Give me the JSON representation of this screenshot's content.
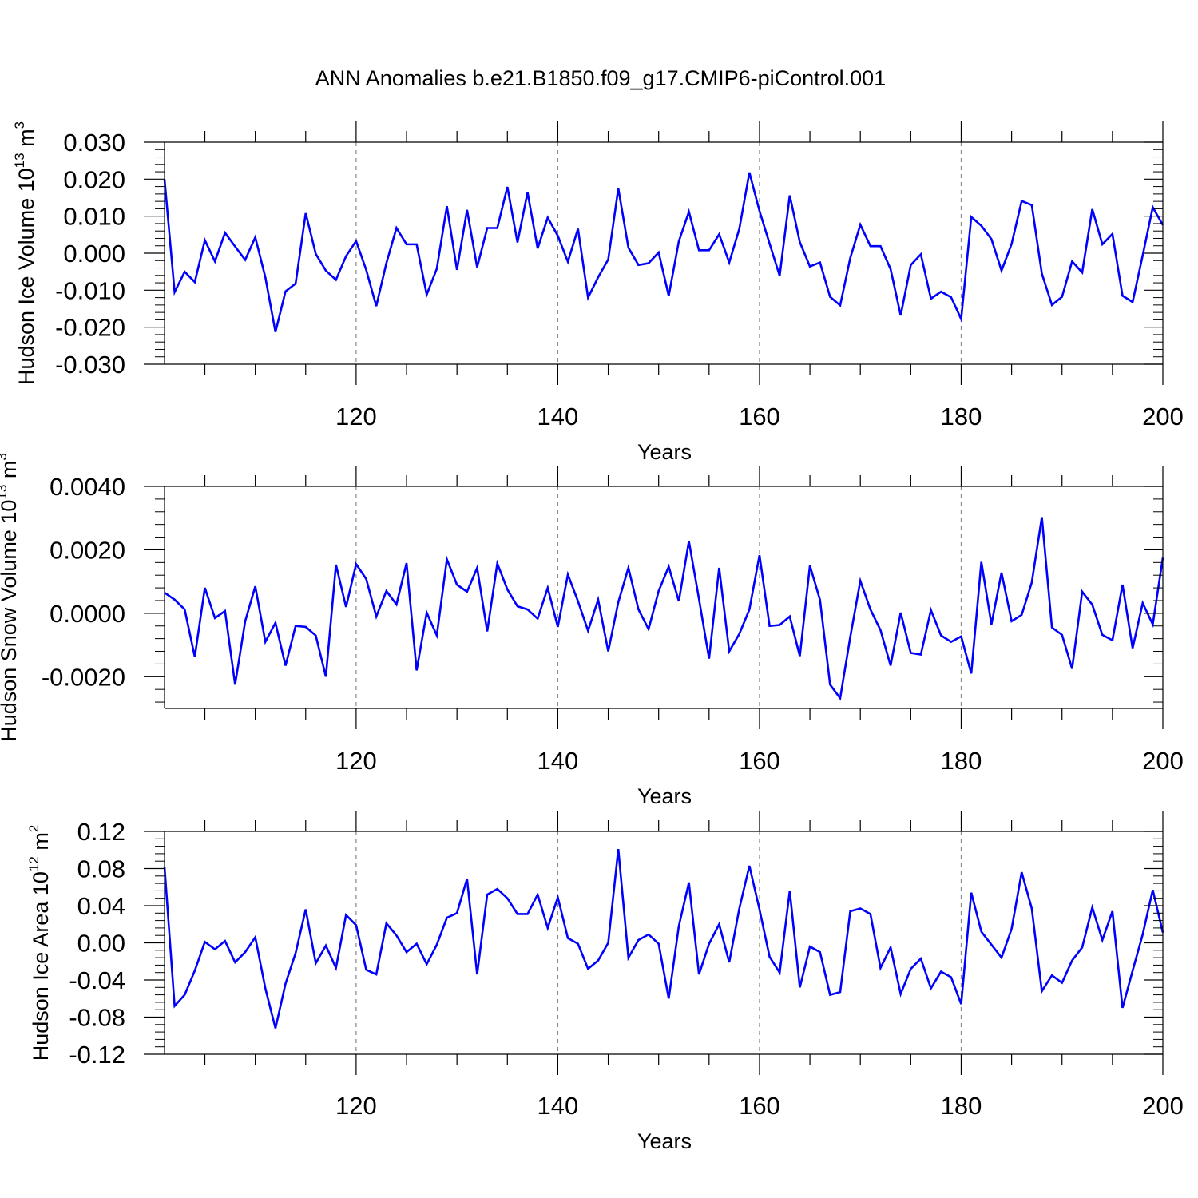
{
  "figure": {
    "title": "ANN Anomalies b.e21.B1850.f09_g17.CMIP6-piControl.001"
  },
  "style": {
    "line_color": "#0000ff",
    "axis_color": "#000000",
    "grid_color": "#888888"
  },
  "chart_data": [
    {
      "type": "line",
      "ylabel": "Hudson Ice Volume 10",
      "ylabel_exp": "13",
      "ylabel_unit": " m",
      "ylabel_unit_exp": "3",
      "xlabel": "Years",
      "xlim": [
        101,
        200
      ],
      "ylim": [
        -0.03,
        0.03
      ],
      "x_major_ticks": [
        120,
        140,
        160,
        180,
        200
      ],
      "x_tick_labels": [
        "120",
        "140",
        "160",
        "180",
        "200"
      ],
      "y_major_ticks": [
        -0.03,
        -0.02,
        -0.01,
        0.0,
        0.01,
        0.02,
        0.03
      ],
      "y_tick_labels": [
        "-0.030",
        "-0.020",
        "-0.010",
        "0.000",
        "0.010",
        "0.020",
        "0.030"
      ],
      "grid": "vertical dashed at major x ticks",
      "x": [
        101,
        102,
        103,
        104,
        105,
        106,
        107,
        108,
        109,
        110,
        111,
        112,
        113,
        114,
        115,
        116,
        117,
        118,
        119,
        120,
        121,
        122,
        123,
        124,
        125,
        126,
        127,
        128,
        129,
        130,
        131,
        132,
        133,
        134,
        135,
        136,
        137,
        138,
        139,
        140,
        141,
        142,
        143,
        144,
        145,
        146,
        147,
        148,
        149,
        150,
        151,
        152,
        153,
        154,
        155,
        156,
        157,
        158,
        159,
        160,
        161,
        162,
        163,
        164,
        165,
        166,
        167,
        168,
        169,
        170,
        171,
        172,
        173,
        174,
        175,
        176,
        177,
        178,
        179,
        180,
        181,
        182,
        183,
        184,
        185,
        186,
        187,
        188,
        189,
        190,
        191,
        192,
        193,
        194,
        195,
        196,
        197,
        198,
        199,
        200
      ],
      "values": [
        0.02,
        -0.0105,
        -0.005,
        -0.0078,
        0.0035,
        -0.0022,
        0.0055,
        0.0018,
        -0.0018,
        0.0043,
        -0.0065,
        -0.0213,
        -0.0103,
        -0.0082,
        0.0108,
        -0.0002,
        -0.0047,
        -0.0072,
        -0.0008,
        0.0033,
        -0.0045,
        -0.0143,
        -0.0027,
        0.0068,
        0.0024,
        0.0024,
        -0.0112,
        -0.0042,
        0.0127,
        -0.0045,
        0.0117,
        -0.0038,
        0.0068,
        0.0068,
        0.0179,
        0.0029,
        0.0164,
        0.0013,
        0.0096,
        0.0047,
        -0.0023,
        0.0066,
        -0.012,
        -0.0065,
        -0.0017,
        0.0175,
        0.0015,
        -0.0032,
        -0.0027,
        0.0002,
        -0.0115,
        0.0032,
        0.0112,
        0.0008,
        0.0008,
        0.0051,
        -0.0025,
        0.0066,
        0.0218,
        0.0114,
        0.0026,
        -0.0061,
        0.0156,
        0.003,
        -0.0036,
        -0.0025,
        -0.0118,
        -0.0141,
        -0.0013,
        0.0077,
        0.0019,
        0.0019,
        -0.0043,
        -0.0168,
        -0.0032,
        -0.0003,
        -0.0123,
        -0.0104,
        -0.0119,
        -0.0178,
        0.0098,
        0.0074,
        0.0038,
        -0.0047,
        0.0025,
        0.0141,
        0.013,
        -0.0055,
        -0.014,
        -0.0118,
        -0.0022,
        -0.0052,
        0.0119,
        0.0024,
        0.0052,
        -0.0115,
        -0.0132,
        -0.0006,
        0.0124,
        0.0076
      ]
    },
    {
      "type": "line",
      "ylabel": "Hudson Snow Volume 10",
      "ylabel_exp": "13",
      "ylabel_unit": " m",
      "ylabel_unit_exp": "3",
      "xlabel": "Years",
      "xlim": [
        101,
        200
      ],
      "ylim": [
        -0.003,
        0.004
      ],
      "x_major_ticks": [
        120,
        140,
        160,
        180,
        200
      ],
      "x_tick_labels": [
        "120",
        "140",
        "160",
        "180",
        "200"
      ],
      "y_major_ticks": [
        -0.002,
        0.0,
        0.002,
        0.004
      ],
      "y_tick_labels": [
        "-0.0020",
        "0.0000",
        "0.0020",
        "0.0040"
      ],
      "grid": "vertical dashed at major x ticks",
      "x": [
        101,
        102,
        103,
        104,
        105,
        106,
        107,
        108,
        109,
        110,
        111,
        112,
        113,
        114,
        115,
        116,
        117,
        118,
        119,
        120,
        121,
        122,
        123,
        124,
        125,
        126,
        127,
        128,
        129,
        130,
        131,
        132,
        133,
        134,
        135,
        136,
        137,
        138,
        139,
        140,
        141,
        142,
        143,
        144,
        145,
        146,
        147,
        148,
        149,
        150,
        151,
        152,
        153,
        154,
        155,
        156,
        157,
        158,
        159,
        160,
        161,
        162,
        163,
        164,
        165,
        166,
        167,
        168,
        169,
        170,
        171,
        172,
        173,
        174,
        175,
        176,
        177,
        178,
        179,
        180,
        181,
        182,
        183,
        184,
        185,
        186,
        187,
        188,
        189,
        190,
        191,
        192,
        193,
        194,
        195,
        196,
        197,
        198,
        199,
        200
      ],
      "values": [
        0.00065,
        0.00043,
        0.00012,
        -0.00137,
        0.0008,
        -0.00015,
        7e-05,
        -0.00225,
        -0.00025,
        0.00085,
        -0.0009,
        -0.0003,
        -0.00165,
        -0.0004,
        -0.00043,
        -0.0007,
        -0.002,
        0.00153,
        0.0002,
        0.00155,
        0.00108,
        -0.0001,
        0.0007,
        0.00028,
        0.00158,
        -0.0018,
        2e-05,
        -0.0007,
        0.0017,
        0.0009,
        0.00068,
        0.00143,
        -0.00057,
        0.00157,
        0.00075,
        0.00022,
        0.00012,
        -0.00017,
        0.0008,
        -0.00043,
        0.00122,
        0.00038,
        -0.00055,
        0.00043,
        -0.0012,
        0.00035,
        0.00143,
        0.00012,
        -0.0005,
        0.0007,
        0.00147,
        0.00038,
        0.00227,
        0.00045,
        -0.00143,
        0.00143,
        -0.0012,
        -0.00065,
        0.00012,
        0.00183,
        -0.0004,
        -0.00037,
        -0.0001,
        -0.00135,
        0.0015,
        0.00042,
        -0.00225,
        -0.00268,
        -0.00075,
        0.00102,
        0.00012,
        -0.00053,
        -0.00165,
        2e-05,
        -0.00125,
        -0.0013,
        0.0001,
        -0.0007,
        -0.0009,
        -0.00073,
        -0.0019,
        0.00162,
        -0.00035,
        0.00128,
        -0.00025,
        -5e-05,
        0.00097,
        0.00303,
        -0.00045,
        -0.00068,
        -0.00175,
        0.00068,
        0.00027,
        -0.00068,
        -0.00085,
        0.0009,
        -0.0011,
        0.00032,
        -0.00035,
        0.00175
      ]
    },
    {
      "type": "line",
      "ylabel": "Hudson Ice Area 10",
      "ylabel_exp": "12",
      "ylabel_unit": " m",
      "ylabel_unit_exp": "2",
      "xlabel": "Years",
      "xlim": [
        101,
        200
      ],
      "ylim": [
        -0.12,
        0.12
      ],
      "x_major_ticks": [
        120,
        140,
        160,
        180,
        200
      ],
      "x_tick_labels": [
        "120",
        "140",
        "160",
        "180",
        "200"
      ],
      "y_major_ticks": [
        -0.12,
        -0.08,
        -0.04,
        0.0,
        0.04,
        0.08,
        0.12
      ],
      "y_tick_labels": [
        "-0.12",
        "-0.08",
        "-0.04",
        "0.00",
        "0.04",
        "0.08",
        "0.12"
      ],
      "grid": "vertical dashed at major x ticks",
      "x": [
        101,
        102,
        103,
        104,
        105,
        106,
        107,
        108,
        109,
        110,
        111,
        112,
        113,
        114,
        115,
        116,
        117,
        118,
        119,
        120,
        121,
        122,
        123,
        124,
        125,
        126,
        127,
        128,
        129,
        130,
        131,
        132,
        133,
        134,
        135,
        136,
        137,
        138,
        139,
        140,
        141,
        142,
        143,
        144,
        145,
        146,
        147,
        148,
        149,
        150,
        151,
        152,
        153,
        154,
        155,
        156,
        157,
        158,
        159,
        160,
        161,
        162,
        163,
        164,
        165,
        166,
        167,
        168,
        169,
        170,
        171,
        172,
        173,
        174,
        175,
        176,
        177,
        178,
        179,
        180,
        181,
        182,
        183,
        184,
        185,
        186,
        187,
        188,
        189,
        190,
        191,
        192,
        193,
        194,
        195,
        196,
        197,
        198,
        199,
        200
      ],
      "values": [
        0.082,
        -0.068,
        -0.056,
        -0.03,
        0.001,
        -0.007,
        0.002,
        -0.021,
        -0.01,
        0.006,
        -0.049,
        -0.092,
        -0.044,
        -0.011,
        0.036,
        -0.022,
        -0.003,
        -0.027,
        0.03,
        0.019,
        -0.029,
        -0.034,
        0.021,
        0.008,
        -0.01,
        -0.001,
        -0.023,
        -0.002,
        0.027,
        0.032,
        0.069,
        -0.034,
        0.052,
        0.058,
        0.048,
        0.031,
        0.031,
        0.052,
        0.016,
        0.049,
        0.005,
        -0.001,
        -0.028,
        -0.019,
        0.0,
        0.101,
        -0.016,
        0.003,
        0.009,
        -0.001,
        -0.06,
        0.018,
        0.065,
        -0.034,
        -0.001,
        0.02,
        -0.021,
        0.037,
        0.083,
        0.036,
        -0.015,
        -0.032,
        0.056,
        -0.048,
        -0.004,
        -0.01,
        -0.056,
        -0.053,
        0.034,
        0.037,
        0.031,
        -0.027,
        -0.005,
        -0.055,
        -0.028,
        -0.017,
        -0.049,
        -0.031,
        -0.037,
        -0.066,
        0.054,
        0.012,
        -0.002,
        -0.016,
        0.015,
        0.076,
        0.037,
        -0.052,
        -0.035,
        -0.043,
        -0.019,
        -0.005,
        0.038,
        0.003,
        0.034,
        -0.07,
        -0.03,
        0.009,
        0.057,
        0.011
      ]
    }
  ]
}
